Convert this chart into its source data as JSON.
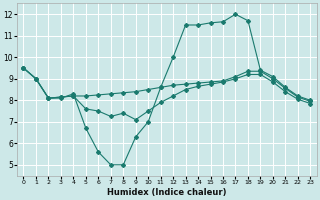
{
  "xlabel": "Humidex (Indice chaleur)",
  "background_color": "#cde8e8",
  "grid_color": "#ffffff",
  "line_color": "#1a7a6e",
  "xlim": [
    -0.5,
    23.5
  ],
  "ylim": [
    4.5,
    12.5
  ],
  "yticks": [
    5,
    6,
    7,
    8,
    9,
    10,
    11,
    12
  ],
  "xticks": [
    0,
    1,
    2,
    3,
    4,
    5,
    6,
    7,
    8,
    9,
    10,
    11,
    12,
    13,
    14,
    15,
    16,
    17,
    18,
    19,
    20,
    21,
    22,
    23
  ],
  "line1_x": [
    0,
    1,
    2,
    3,
    4,
    5,
    6,
    7,
    8,
    9,
    10,
    11,
    12,
    13,
    14,
    15,
    16,
    17,
    18,
    19,
    20,
    21,
    22,
    23
  ],
  "line1_y": [
    9.5,
    9.0,
    8.1,
    8.1,
    8.3,
    6.7,
    5.6,
    5.0,
    5.0,
    6.3,
    7.0,
    8.6,
    10.0,
    11.5,
    11.5,
    11.6,
    11.65,
    12.0,
    11.7,
    9.4,
    9.1,
    8.6,
    8.2,
    8.0
  ],
  "line2_x": [
    0,
    1,
    2,
    3,
    4,
    5,
    6,
    7,
    8,
    9,
    10,
    11,
    12,
    13,
    14,
    15,
    16,
    17,
    18,
    19,
    20,
    21,
    22,
    23
  ],
  "line2_y": [
    9.5,
    9.0,
    8.1,
    8.15,
    8.2,
    8.2,
    8.25,
    8.3,
    8.35,
    8.4,
    8.5,
    8.6,
    8.7,
    8.75,
    8.8,
    8.85,
    8.9,
    9.1,
    9.35,
    9.35,
    9.0,
    8.55,
    8.15,
    7.95
  ],
  "line3_x": [
    0,
    1,
    2,
    3,
    4,
    5,
    6,
    7,
    8,
    9,
    10,
    11,
    12,
    13,
    14,
    15,
    16,
    17,
    18,
    19,
    20,
    21,
    22,
    23
  ],
  "line3_y": [
    9.5,
    9.0,
    8.1,
    8.15,
    8.2,
    7.6,
    7.5,
    7.25,
    7.4,
    7.1,
    7.5,
    7.9,
    8.2,
    8.5,
    8.65,
    8.75,
    8.85,
    9.0,
    9.2,
    9.2,
    8.85,
    8.4,
    8.05,
    7.85
  ]
}
